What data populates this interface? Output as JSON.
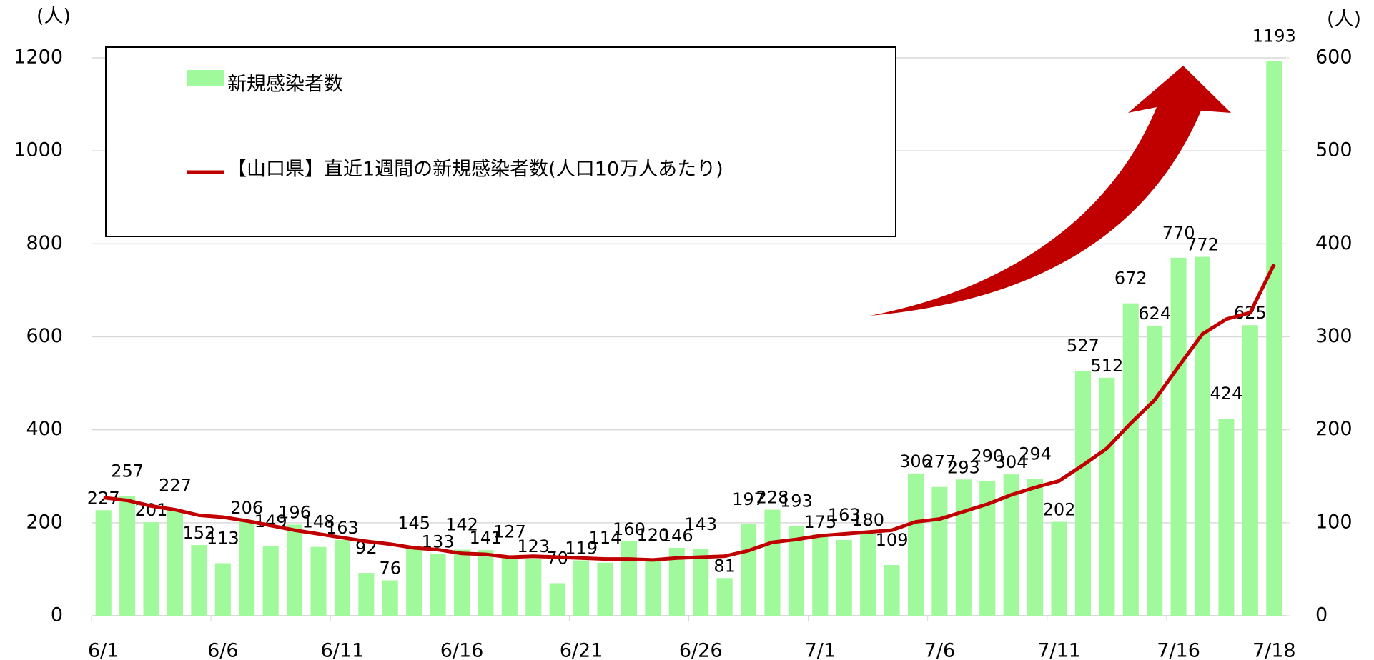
{
  "chart_data": {
    "type": "bar_line",
    "y_label": "(人)",
    "y2_label": "(人)",
    "categories": [
      "6/1",
      null,
      null,
      null,
      null,
      "6/6",
      null,
      null,
      null,
      null,
      "6/11",
      null,
      null,
      null,
      null,
      "6/16",
      null,
      null,
      null,
      null,
      "6/21",
      null,
      null,
      null,
      null,
      "6/26",
      null,
      null,
      null,
      null,
      "7/1",
      null,
      null,
      null,
      null,
      "7/6",
      null,
      null,
      null,
      null,
      "7/11",
      null,
      null,
      null,
      null,
      "7/16",
      null,
      null,
      null,
      "7/18"
    ],
    "series": [
      {
        "name": "新規感染者数",
        "type": "bar",
        "color": "#a0f99a",
        "axis": "y",
        "values": [
          227,
          257,
          201,
          227,
          152,
          113,
          206,
          149,
          196,
          148,
          163,
          92,
          76,
          145,
          133,
          142,
          141,
          127,
          123,
          70,
          119,
          114,
          160,
          120,
          146,
          143,
          81,
          197,
          228,
          193,
          175,
          163,
          180,
          109,
          306,
          277,
          293,
          290,
          304,
          294,
          202,
          527,
          512,
          672,
          624,
          770,
          772,
          424,
          625,
          1193
        ]
      },
      {
        "name": "【山口県】直近1週間の新規感染者数(人口10万人あたり)",
        "type": "line",
        "color": "#c00000",
        "axis": "y2",
        "values": [
          127,
          124,
          118,
          114,
          108,
          106,
          102,
          97,
          92,
          88,
          84,
          80,
          77,
          73,
          71,
          67,
          66,
          63,
          64,
          63,
          62,
          61,
          61,
          60,
          62,
          63,
          64,
          70,
          79,
          82,
          86,
          88,
          90,
          92,
          101,
          104,
          112,
          120,
          130,
          138,
          145,
          162,
          180,
          207,
          232,
          268,
          303,
          319,
          326,
          378
        ]
      }
    ],
    "ylim": [
      0,
      1200
    ],
    "yticks": [
      0,
      200,
      400,
      600,
      800,
      1000,
      1200
    ],
    "y2lim": [
      0,
      600
    ],
    "y2ticks": [
      0,
      100,
      200,
      300,
      400,
      500,
      600
    ],
    "grid": true
  }
}
